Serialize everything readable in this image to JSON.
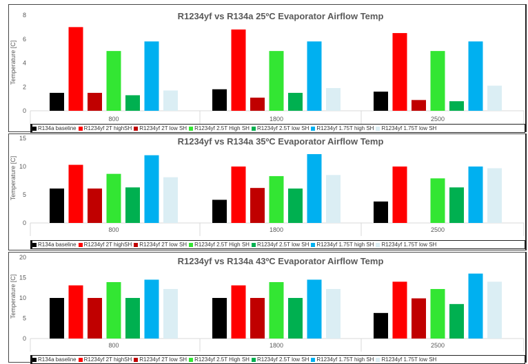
{
  "legend_entries": [
    "R134a baseline",
    "R1234yf 2T highSH",
    "R1234yf 2T low SH",
    "R1234yf 2.5T High SH",
    "R1234yf 2.5T low SH",
    "R1234yf 1.75T high SH",
    "R1234yf 1.75T low SH"
  ],
  "series_colors": [
    "#000000",
    "#ff0000",
    "#c00000",
    "#33e633",
    "#00b050",
    "#00b0f0",
    "#dbeef4"
  ],
  "chart_data": [
    {
      "type": "bar",
      "title": "R1234yf vs R134a 25ºC Evaporator Airflow Temp",
      "ylabel": "Temperature [C]",
      "xlabel": "",
      "ylim": [
        0,
        8
      ],
      "yticks": [
        "0",
        "2",
        "4",
        "6",
        "8"
      ],
      "categories": [
        "800",
        "1800",
        "2500"
      ],
      "series": [
        {
          "name": "R134a baseline",
          "values": [
            1.5,
            1.8,
            1.6
          ]
        },
        {
          "name": "R1234yf 2T highSH",
          "values": [
            7.0,
            6.8,
            6.5
          ]
        },
        {
          "name": "R1234yf 2T low SH",
          "values": [
            1.5,
            1.1,
            0.9
          ]
        },
        {
          "name": "R1234yf 2.5T High SH",
          "values": [
            5.0,
            5.0,
            5.0
          ]
        },
        {
          "name": "R1234yf 2.5T low SH",
          "values": [
            1.3,
            1.5,
            0.8
          ]
        },
        {
          "name": "R1234yf 1.75T high SH",
          "values": [
            5.8,
            5.8,
            5.8
          ]
        },
        {
          "name": "R1234yf 1.75T low SH",
          "values": [
            1.7,
            1.9,
            2.1
          ]
        }
      ]
    },
    {
      "type": "bar",
      "title": "R1234yf vs R134a 35ºC Evaporator Airflow Temp",
      "ylabel": "Temperature [C]",
      "xlabel": "",
      "ylim": [
        0,
        15
      ],
      "yticks": [
        "0",
        "5",
        "10",
        "15"
      ],
      "categories": [
        "800",
        "1800",
        "2500"
      ],
      "series": [
        {
          "name": "R134a baseline",
          "values": [
            6.1,
            4.1,
            3.8
          ]
        },
        {
          "name": "R1234yf 2T highSH",
          "values": [
            10.3,
            10.0,
            10.0
          ]
        },
        {
          "name": "R1234yf 2T low SH",
          "values": [
            6.1,
            6.2,
            null
          ]
        },
        {
          "name": "R1234yf 2.5T High SH",
          "values": [
            8.7,
            8.3,
            7.9
          ]
        },
        {
          "name": "R1234yf 2.5T low SH",
          "values": [
            6.3,
            6.1,
            6.3
          ]
        },
        {
          "name": "R1234yf 1.75T high SH",
          "values": [
            12.0,
            12.2,
            10.0
          ]
        },
        {
          "name": "R1234yf 1.75T low SH",
          "values": [
            8.1,
            8.5,
            9.7
          ]
        }
      ]
    },
    {
      "type": "bar",
      "title": "R1234yf vs R134a 43ºC Evaporator Airflow Temp",
      "ylabel": "Temperature [C]",
      "xlabel": "",
      "ylim": [
        0,
        20
      ],
      "yticks": [
        "0",
        "5",
        "10",
        "15",
        "20"
      ],
      "categories": [
        "800",
        "1800",
        "2500"
      ],
      "series": [
        {
          "name": "R134a baseline",
          "values": [
            10.0,
            10.0,
            6.3
          ]
        },
        {
          "name": "R1234yf 2T highSH",
          "values": [
            13.1,
            13.1,
            14.0
          ]
        },
        {
          "name": "R1234yf 2T low SH",
          "values": [
            10.0,
            10.0,
            9.9
          ]
        },
        {
          "name": "R1234yf 2.5T High SH",
          "values": [
            13.9,
            13.9,
            12.2
          ]
        },
        {
          "name": "R1234yf 2.5T low SH",
          "values": [
            10.0,
            10.0,
            8.5
          ]
        },
        {
          "name": "R1234yf 1.75T high SH",
          "values": [
            14.5,
            14.5,
            16.0
          ]
        },
        {
          "name": "R1234yf 1.75T low SH",
          "values": [
            12.2,
            12.2,
            14.0
          ]
        }
      ]
    }
  ]
}
